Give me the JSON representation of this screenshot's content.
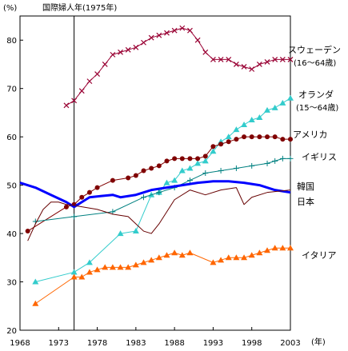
{
  "chart_data": {
    "type": "line",
    "ylabel": "(%)",
    "xlabel": "(年)",
    "annotation": "国際婦人年(1975年)",
    "annotation_x": 1975,
    "xlim": [
      1968,
      2003
    ],
    "ylim": [
      20,
      85
    ],
    "yticks": [
      20,
      30,
      40,
      50,
      60,
      70,
      80
    ],
    "xticks": [
      1968,
      1973,
      1978,
      1983,
      1988,
      1993,
      1998,
      2003
    ],
    "series": [
      {
        "name": "スウェーデン",
        "note": "(16～64歳)",
        "color": "#990033",
        "marker": "x",
        "points": [
          [
            1974,
            66.5
          ],
          [
            1975,
            67.5
          ],
          [
            1976,
            69.5
          ],
          [
            1977,
            71.5
          ],
          [
            1978,
            73
          ],
          [
            1979,
            75
          ],
          [
            1980,
            77
          ],
          [
            1981,
            77.5
          ],
          [
            1982,
            78
          ],
          [
            1983,
            78.5
          ],
          [
            1984,
            79.5
          ],
          [
            1985,
            80.5
          ],
          [
            1986,
            81
          ],
          [
            1987,
            81.5
          ],
          [
            1988,
            82
          ],
          [
            1989,
            82.5
          ],
          [
            1990,
            82
          ],
          [
            1991,
            80
          ],
          [
            1992,
            77.5
          ],
          [
            1993,
            76
          ],
          [
            1994,
            76
          ],
          [
            1995,
            76
          ],
          [
            1996,
            75
          ],
          [
            1997,
            74.5
          ],
          [
            1998,
            74
          ],
          [
            1999,
            75
          ],
          [
            2000,
            75.5
          ],
          [
            2001,
            76
          ],
          [
            2002,
            76
          ],
          [
            2003,
            76
          ]
        ]
      },
      {
        "name": "オランダ",
        "note": "(15～64歳)",
        "color": "#33cccc",
        "marker": "triangle",
        "points": [
          [
            1970,
            30
          ],
          [
            1975,
            32
          ],
          [
            1977,
            34
          ],
          [
            1981,
            40
          ],
          [
            1983,
            40.5
          ],
          [
            1985,
            48
          ],
          [
            1986,
            48.5
          ],
          [
            1987,
            50.5
          ],
          [
            1988,
            51
          ],
          [
            1989,
            53
          ],
          [
            1990,
            53.5
          ],
          [
            1991,
            54.5
          ],
          [
            1992,
            55
          ],
          [
            1993,
            57
          ],
          [
            1994,
            59
          ],
          [
            1995,
            60
          ],
          [
            1996,
            61.5
          ],
          [
            1997,
            62.5
          ],
          [
            1998,
            63.5
          ],
          [
            1999,
            64
          ],
          [
            2000,
            65.5
          ],
          [
            2001,
            66
          ],
          [
            2002,
            67
          ],
          [
            2003,
            68
          ]
        ]
      },
      {
        "name": "アメリカ",
        "color": "#800000",
        "marker": "circle",
        "points": [
          [
            1969,
            40.5
          ],
          [
            1974,
            45.5
          ],
          [
            1975,
            46
          ],
          [
            1976,
            47.5
          ],
          [
            1977,
            48.5
          ],
          [
            1978,
            49.5
          ],
          [
            1980,
            51
          ],
          [
            1982,
            51.5
          ],
          [
            1983,
            52
          ],
          [
            1984,
            53
          ],
          [
            1985,
            53.5
          ],
          [
            1986,
            54
          ],
          [
            1987,
            55
          ],
          [
            1988,
            55.5
          ],
          [
            1989,
            55.5
          ],
          [
            1990,
            55.5
          ],
          [
            1991,
            55.5
          ],
          [
            1992,
            56
          ],
          [
            1993,
            58
          ],
          [
            1994,
            58.5
          ],
          [
            1995,
            59
          ],
          [
            1996,
            59.5
          ],
          [
            1997,
            60
          ],
          [
            1998,
            60
          ],
          [
            1999,
            60
          ],
          [
            2000,
            60
          ],
          [
            2001,
            60
          ],
          [
            2002,
            59.5
          ],
          [
            2003,
            59.5
          ]
        ]
      },
      {
        "name": "イギリス",
        "color": "#008080",
        "marker": "plus",
        "points": [
          [
            1970,
            42.5
          ],
          [
            1975,
            43.5
          ],
          [
            1980,
            44.5
          ],
          [
            1984,
            47.5
          ],
          [
            1986,
            48.5
          ],
          [
            1988,
            49.5
          ],
          [
            1990,
            51
          ],
          [
            1992,
            52.5
          ],
          [
            1994,
            53
          ],
          [
            1996,
            53.5
          ],
          [
            1998,
            54
          ],
          [
            2000,
            54.5
          ],
          [
            2001,
            55
          ],
          [
            2002,
            55.5
          ],
          [
            2003,
            55.5
          ]
        ]
      },
      {
        "name": "韓国",
        "color": "#0000ff",
        "marker": "none",
        "width": 3,
        "points": [
          [
            1968,
            50.5
          ],
          [
            1970,
            49.5
          ],
          [
            1972,
            48
          ],
          [
            1974,
            46.5
          ],
          [
            1975,
            45.5
          ],
          [
            1976,
            46.5
          ],
          [
            1977,
            47.5
          ],
          [
            1980,
            48
          ],
          [
            1981,
            47.5
          ],
          [
            1983,
            48
          ],
          [
            1985,
            49
          ],
          [
            1987,
            49.5
          ],
          [
            1989,
            50
          ],
          [
            1991,
            50.5
          ],
          [
            1993,
            50.8
          ],
          [
            1995,
            50.8
          ],
          [
            1997,
            50.5
          ],
          [
            1999,
            50
          ],
          [
            2001,
            49
          ],
          [
            2003,
            48.5
          ]
        ]
      },
      {
        "name": "日本",
        "color": "#660000",
        "marker": "none",
        "width": 1,
        "points": [
          [
            1969,
            38.5
          ],
          [
            1970,
            42
          ],
          [
            1971,
            45
          ],
          [
            1972,
            46.5
          ],
          [
            1973,
            46.5
          ],
          [
            1974,
            46
          ],
          [
            1975,
            45.8
          ],
          [
            1978,
            45
          ],
          [
            1980,
            44
          ],
          [
            1982,
            43.5
          ],
          [
            1983,
            42
          ],
          [
            1984,
            40.5
          ],
          [
            1985,
            40
          ],
          [
            1986,
            42
          ],
          [
            1987,
            44.5
          ],
          [
            1988,
            47
          ],
          [
            1990,
            49
          ],
          [
            1992,
            48
          ],
          [
            1994,
            49
          ],
          [
            1996,
            49.5
          ],
          [
            1997,
            46
          ],
          [
            1998,
            47.5
          ],
          [
            2000,
            48.5
          ],
          [
            2003,
            49
          ]
        ]
      },
      {
        "name": "イタリア",
        "color": "#ff6600",
        "marker": "triangle",
        "points": [
          [
            1970,
            25.5
          ],
          [
            1975,
            31
          ],
          [
            1976,
            31
          ],
          [
            1977,
            32
          ],
          [
            1978,
            32.5
          ],
          [
            1979,
            33
          ],
          [
            1980,
            33
          ],
          [
            1981,
            33
          ],
          [
            1982,
            33
          ],
          [
            1983,
            33.5
          ],
          [
            1984,
            34
          ],
          [
            1985,
            34.5
          ],
          [
            1986,
            35
          ],
          [
            1987,
            35.5
          ],
          [
            1988,
            36
          ],
          [
            1989,
            35.5
          ],
          [
            1990,
            36
          ],
          [
            1993,
            34
          ],
          [
            1994,
            34.5
          ],
          [
            1995,
            35
          ],
          [
            1996,
            35
          ],
          [
            1997,
            35
          ],
          [
            1998,
            35.5
          ],
          [
            1999,
            36
          ],
          [
            2000,
            36.5
          ],
          [
            2001,
            37
          ],
          [
            2002,
            37
          ],
          [
            2003,
            37
          ]
        ]
      }
    ]
  }
}
